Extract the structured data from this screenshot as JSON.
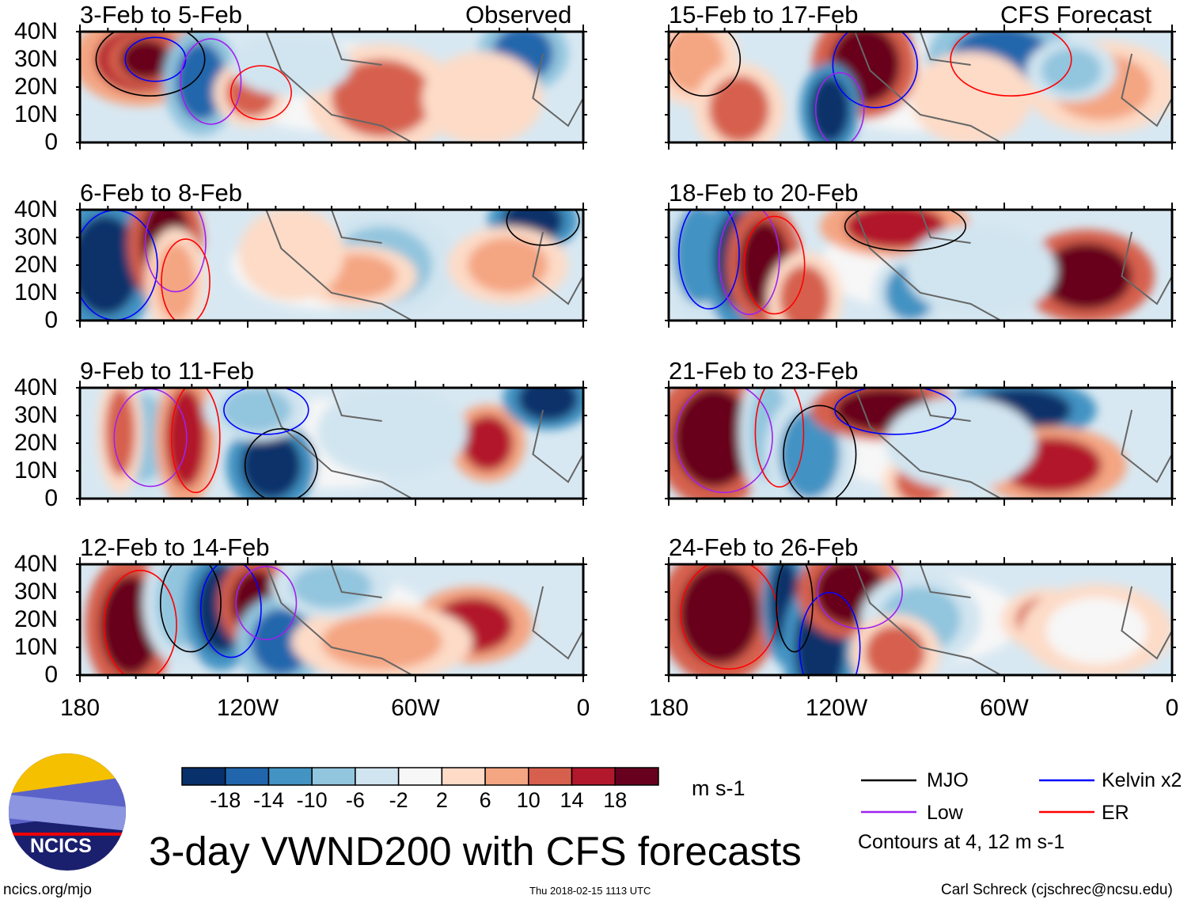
{
  "figure": {
    "title": "3-day VWND200 with CFS forecasts",
    "units": "m s-1",
    "website": "ncics.org/mjo",
    "timestamp": "Thu 2018-02-15 1113 UTC",
    "author": "Carl Schreck (cjschrec@ncsu.edu)",
    "logo_text": "NCICS"
  },
  "columns": [
    {
      "label": "Observed",
      "panels": [
        "3-Feb to 5-Feb",
        "6-Feb to 8-Feb",
        "9-Feb to 11-Feb",
        "12-Feb to 14-Feb"
      ]
    },
    {
      "label": "CFS Forecast",
      "panels": [
        "15-Feb to 17-Feb",
        "18-Feb to 20-Feb",
        "21-Feb to 23-Feb",
        "24-Feb to 26-Feb"
      ]
    }
  ],
  "lat_labels": [
    "40N",
    "30N",
    "20N",
    "10N",
    "0"
  ],
  "lon_labels": [
    "180",
    "120W",
    "60W",
    "0"
  ],
  "colorbar": {
    "labels": [
      "-18",
      "-14",
      "-10",
      "-6",
      "-2",
      "2",
      "6",
      "10",
      "14",
      "18"
    ],
    "colors": [
      "#08306b",
      "#2166ac",
      "#4393c3",
      "#92c5de",
      "#d1e5f0",
      "#f7f7f7",
      "#fddbc7",
      "#f4a582",
      "#d6604d",
      "#b2182b",
      "#67001f"
    ]
  },
  "legend": {
    "items": [
      {
        "label": "MJO",
        "color": "#000000"
      },
      {
        "label": "Kelvin x2",
        "color": "#0000ff"
      },
      {
        "label": "Low",
        "color": "#a020f0"
      },
      {
        "label": "ER",
        "color": "#ff0000"
      }
    ],
    "note": "Contours at 4, 12 m s-1"
  }
}
